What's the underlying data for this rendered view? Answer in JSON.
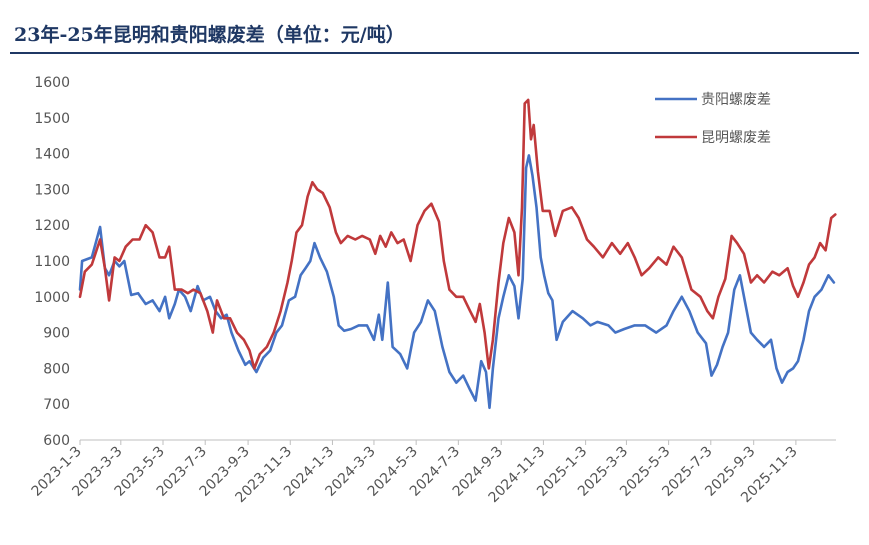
{
  "chart_data": {
    "type": "line",
    "title": "23年-25年昆明和贵阳螺废差（单位：元/吨）",
    "xlabel": "",
    "ylabel": "",
    "ylim": [
      600,
      1600
    ],
    "yticks": [
      600,
      700,
      800,
      900,
      1000,
      1100,
      1200,
      1300,
      1400,
      1500,
      1600
    ],
    "xlim": [
      "2023-01-03",
      "2025-12-31"
    ],
    "xticks": [
      "2023-1-3",
      "2023-3-3",
      "2023-5-3",
      "2023-7-3",
      "2023-9-3",
      "2023-11-3",
      "2024-1-3",
      "2024-3-3",
      "2024-5-3",
      "2024-7-3",
      "2024-9-3",
      "2024-11-3",
      "2025-1-3",
      "2025-3-3",
      "2025-5-3",
      "2025-7-3",
      "2025-9-3",
      "2025-11-3"
    ],
    "legend_position": "top-right",
    "series": [
      {
        "name": "贵阳螺废差",
        "color": "#4472c4",
        "points": [
          [
            "2023-01-03",
            1020
          ],
          [
            "2023-01-06",
            1100
          ],
          [
            "2023-01-20",
            1110
          ],
          [
            "2023-02-01",
            1195
          ],
          [
            "2023-02-08",
            1080
          ],
          [
            "2023-02-14",
            1060
          ],
          [
            "2023-02-22",
            1100
          ],
          [
            "2023-03-01",
            1085
          ],
          [
            "2023-03-08",
            1100
          ],
          [
            "2023-03-18",
            1005
          ],
          [
            "2023-03-28",
            1010
          ],
          [
            "2023-04-08",
            980
          ],
          [
            "2023-04-18",
            990
          ],
          [
            "2023-04-28",
            960
          ],
          [
            "2023-05-06",
            1000
          ],
          [
            "2023-05-12",
            940
          ],
          [
            "2023-05-20",
            980
          ],
          [
            "2023-05-26",
            1020
          ],
          [
            "2023-06-04",
            1000
          ],
          [
            "2023-06-12",
            960
          ],
          [
            "2023-06-22",
            1030
          ],
          [
            "2023-06-30",
            990
          ],
          [
            "2023-07-10",
            1000
          ],
          [
            "2023-07-18",
            960
          ],
          [
            "2023-07-26",
            940
          ],
          [
            "2023-08-03",
            950
          ],
          [
            "2023-08-10",
            900
          ],
          [
            "2023-08-20",
            850
          ],
          [
            "2023-08-30",
            810
          ],
          [
            "2023-09-05",
            820
          ],
          [
            "2023-09-15",
            790
          ],
          [
            "2023-09-25",
            830
          ],
          [
            "2023-10-05",
            850
          ],
          [
            "2023-10-14",
            900
          ],
          [
            "2023-10-22",
            920
          ],
          [
            "2023-11-01",
            990
          ],
          [
            "2023-11-10",
            1000
          ],
          [
            "2023-11-18",
            1060
          ],
          [
            "2023-11-25",
            1080
          ],
          [
            "2023-12-02",
            1100
          ],
          [
            "2023-12-08",
            1150
          ],
          [
            "2023-12-16",
            1110
          ],
          [
            "2023-12-26",
            1070
          ],
          [
            "2024-01-05",
            1000
          ],
          [
            "2024-01-12",
            920
          ],
          [
            "2024-01-20",
            905
          ],
          [
            "2024-01-30",
            910
          ],
          [
            "2024-02-10",
            920
          ],
          [
            "2024-02-22",
            920
          ],
          [
            "2024-03-03",
            880
          ],
          [
            "2024-03-10",
            950
          ],
          [
            "2024-03-15",
            880
          ],
          [
            "2024-03-23",
            1040
          ],
          [
            "2024-03-30",
            860
          ],
          [
            "2024-04-10",
            840
          ],
          [
            "2024-04-20",
            800
          ],
          [
            "2024-04-30",
            900
          ],
          [
            "2024-05-10",
            930
          ],
          [
            "2024-05-20",
            990
          ],
          [
            "2024-05-30",
            960
          ],
          [
            "2024-06-10",
            860
          ],
          [
            "2024-06-20",
            790
          ],
          [
            "2024-06-30",
            760
          ],
          [
            "2024-07-10",
            780
          ],
          [
            "2024-07-20",
            740
          ],
          [
            "2024-07-28",
            710
          ],
          [
            "2024-08-05",
            820
          ],
          [
            "2024-08-12",
            790
          ],
          [
            "2024-08-17",
            690
          ],
          [
            "2024-08-22",
            800
          ],
          [
            "2024-08-30",
            940
          ],
          [
            "2024-09-06",
            1000
          ],
          [
            "2024-09-14",
            1060
          ],
          [
            "2024-09-22",
            1030
          ],
          [
            "2024-09-28",
            940
          ],
          [
            "2024-10-04",
            1050
          ],
          [
            "2024-10-09",
            1360
          ],
          [
            "2024-10-13",
            1395
          ],
          [
            "2024-10-18",
            1340
          ],
          [
            "2024-10-24",
            1250
          ],
          [
            "2024-10-30",
            1110
          ],
          [
            "2024-11-04",
            1060
          ],
          [
            "2024-11-10",
            1010
          ],
          [
            "2024-11-16",
            990
          ],
          [
            "2024-11-22",
            880
          ],
          [
            "2024-12-01",
            930
          ],
          [
            "2024-12-15",
            960
          ],
          [
            "2024-12-30",
            940
          ],
          [
            "2025-01-10",
            920
          ],
          [
            "2025-01-20",
            930
          ],
          [
            "2025-02-05",
            920
          ],
          [
            "2025-02-15",
            900
          ],
          [
            "2025-02-28",
            910
          ],
          [
            "2025-03-15",
            920
          ],
          [
            "2025-03-30",
            920
          ],
          [
            "2025-04-15",
            900
          ],
          [
            "2025-04-30",
            920
          ],
          [
            "2025-05-10",
            960
          ],
          [
            "2025-05-22",
            1000
          ],
          [
            "2025-06-02",
            960
          ],
          [
            "2025-06-14",
            900
          ],
          [
            "2025-06-26",
            870
          ],
          [
            "2025-07-04",
            780
          ],
          [
            "2025-07-12",
            810
          ],
          [
            "2025-07-20",
            860
          ],
          [
            "2025-07-28",
            900
          ],
          [
            "2025-08-06",
            1020
          ],
          [
            "2025-08-14",
            1060
          ],
          [
            "2025-08-22",
            980
          ],
          [
            "2025-08-30",
            900
          ],
          [
            "2025-09-08",
            880
          ],
          [
            "2025-09-18",
            860
          ],
          [
            "2025-09-28",
            880
          ],
          [
            "2025-10-06",
            800
          ],
          [
            "2025-10-14",
            760
          ],
          [
            "2025-10-22",
            790
          ],
          [
            "2025-10-30",
            800
          ],
          [
            "2025-11-06",
            820
          ],
          [
            "2025-11-14",
            880
          ],
          [
            "2025-11-22",
            960
          ],
          [
            "2025-11-30",
            1000
          ],
          [
            "2025-12-10",
            1020
          ],
          [
            "2025-12-20",
            1060
          ],
          [
            "2025-12-28",
            1040
          ]
        ]
      },
      {
        "name": "昆明螺废差",
        "color": "#c0393b",
        "points": [
          [
            "2023-01-03",
            1000
          ],
          [
            "2023-01-10",
            1070
          ],
          [
            "2023-01-20",
            1090
          ],
          [
            "2023-02-01",
            1160
          ],
          [
            "2023-02-08",
            1080
          ],
          [
            "2023-02-14",
            990
          ],
          [
            "2023-02-22",
            1110
          ],
          [
            "2023-03-01",
            1100
          ],
          [
            "2023-03-10",
            1140
          ],
          [
            "2023-03-20",
            1160
          ],
          [
            "2023-03-30",
            1160
          ],
          [
            "2023-04-08",
            1200
          ],
          [
            "2023-04-18",
            1180
          ],
          [
            "2023-04-28",
            1110
          ],
          [
            "2023-05-06",
            1110
          ],
          [
            "2023-05-12",
            1140
          ],
          [
            "2023-05-20",
            1020
          ],
          [
            "2023-05-30",
            1020
          ],
          [
            "2023-06-08",
            1010
          ],
          [
            "2023-06-16",
            1020
          ],
          [
            "2023-06-26",
            1010
          ],
          [
            "2023-07-06",
            960
          ],
          [
            "2023-07-14",
            900
          ],
          [
            "2023-07-20",
            990
          ],
          [
            "2023-07-30",
            940
          ],
          [
            "2023-08-08",
            940
          ],
          [
            "2023-08-18",
            900
          ],
          [
            "2023-08-28",
            880
          ],
          [
            "2023-09-05",
            850
          ],
          [
            "2023-09-12",
            800
          ],
          [
            "2023-09-20",
            840
          ],
          [
            "2023-09-30",
            860
          ],
          [
            "2023-10-10",
            900
          ],
          [
            "2023-10-20",
            960
          ],
          [
            "2023-10-30",
            1040
          ],
          [
            "2023-11-05",
            1100
          ],
          [
            "2023-11-12",
            1180
          ],
          [
            "2023-11-20",
            1200
          ],
          [
            "2023-11-28",
            1280
          ],
          [
            "2023-12-05",
            1320
          ],
          [
            "2023-12-12",
            1300
          ],
          [
            "2023-12-20",
            1290
          ],
          [
            "2023-12-30",
            1250
          ],
          [
            "2024-01-08",
            1180
          ],
          [
            "2024-01-15",
            1150
          ],
          [
            "2024-01-25",
            1170
          ],
          [
            "2024-02-05",
            1160
          ],
          [
            "2024-02-15",
            1170
          ],
          [
            "2024-02-26",
            1160
          ],
          [
            "2024-03-05",
            1120
          ],
          [
            "2024-03-12",
            1170
          ],
          [
            "2024-03-20",
            1140
          ],
          [
            "2024-03-28",
            1180
          ],
          [
            "2024-04-06",
            1150
          ],
          [
            "2024-04-15",
            1160
          ],
          [
            "2024-04-25",
            1100
          ],
          [
            "2024-05-05",
            1200
          ],
          [
            "2024-05-15",
            1240
          ],
          [
            "2024-05-25",
            1260
          ],
          [
            "2024-06-05",
            1210
          ],
          [
            "2024-06-12",
            1100
          ],
          [
            "2024-06-20",
            1020
          ],
          [
            "2024-06-30",
            1000
          ],
          [
            "2024-07-10",
            1000
          ],
          [
            "2024-07-20",
            960
          ],
          [
            "2024-07-28",
            930
          ],
          [
            "2024-08-03",
            980
          ],
          [
            "2024-08-10",
            900
          ],
          [
            "2024-08-16",
            800
          ],
          [
            "2024-08-22",
            880
          ],
          [
            "2024-08-30",
            1040
          ],
          [
            "2024-09-06",
            1150
          ],
          [
            "2024-09-14",
            1220
          ],
          [
            "2024-09-22",
            1180
          ],
          [
            "2024-09-28",
            1060
          ],
          [
            "2024-10-03",
            1250
          ],
          [
            "2024-10-07",
            1540
          ],
          [
            "2024-10-12",
            1550
          ],
          [
            "2024-10-16",
            1440
          ],
          [
            "2024-10-20",
            1480
          ],
          [
            "2024-10-26",
            1350
          ],
          [
            "2024-11-02",
            1240
          ],
          [
            "2024-11-12",
            1240
          ],
          [
            "2024-11-20",
            1170
          ],
          [
            "2024-12-01",
            1240
          ],
          [
            "2024-12-14",
            1250
          ],
          [
            "2024-12-24",
            1220
          ],
          [
            "2025-01-05",
            1160
          ],
          [
            "2025-01-15",
            1140
          ],
          [
            "2025-01-28",
            1110
          ],
          [
            "2025-02-10",
            1150
          ],
          [
            "2025-02-22",
            1120
          ],
          [
            "2025-03-05",
            1150
          ],
          [
            "2025-03-15",
            1110
          ],
          [
            "2025-03-25",
            1060
          ],
          [
            "2025-04-05",
            1080
          ],
          [
            "2025-04-18",
            1110
          ],
          [
            "2025-04-30",
            1090
          ],
          [
            "2025-05-10",
            1140
          ],
          [
            "2025-05-22",
            1110
          ],
          [
            "2025-06-05",
            1020
          ],
          [
            "2025-06-18",
            1000
          ],
          [
            "2025-06-28",
            960
          ],
          [
            "2025-07-06",
            940
          ],
          [
            "2025-07-14",
            1000
          ],
          [
            "2025-07-24",
            1050
          ],
          [
            "2025-08-02",
            1170
          ],
          [
            "2025-08-10",
            1150
          ],
          [
            "2025-08-20",
            1120
          ],
          [
            "2025-08-30",
            1040
          ],
          [
            "2025-09-08",
            1060
          ],
          [
            "2025-09-18",
            1040
          ],
          [
            "2025-09-30",
            1070
          ],
          [
            "2025-10-10",
            1060
          ],
          [
            "2025-10-22",
            1080
          ],
          [
            "2025-10-30",
            1030
          ],
          [
            "2025-11-06",
            1000
          ],
          [
            "2025-11-14",
            1040
          ],
          [
            "2025-11-22",
            1090
          ],
          [
            "2025-11-30",
            1110
          ],
          [
            "2025-12-08",
            1150
          ],
          [
            "2025-12-16",
            1130
          ],
          [
            "2025-12-24",
            1220
          ],
          [
            "2025-12-30",
            1230
          ]
        ]
      }
    ]
  }
}
